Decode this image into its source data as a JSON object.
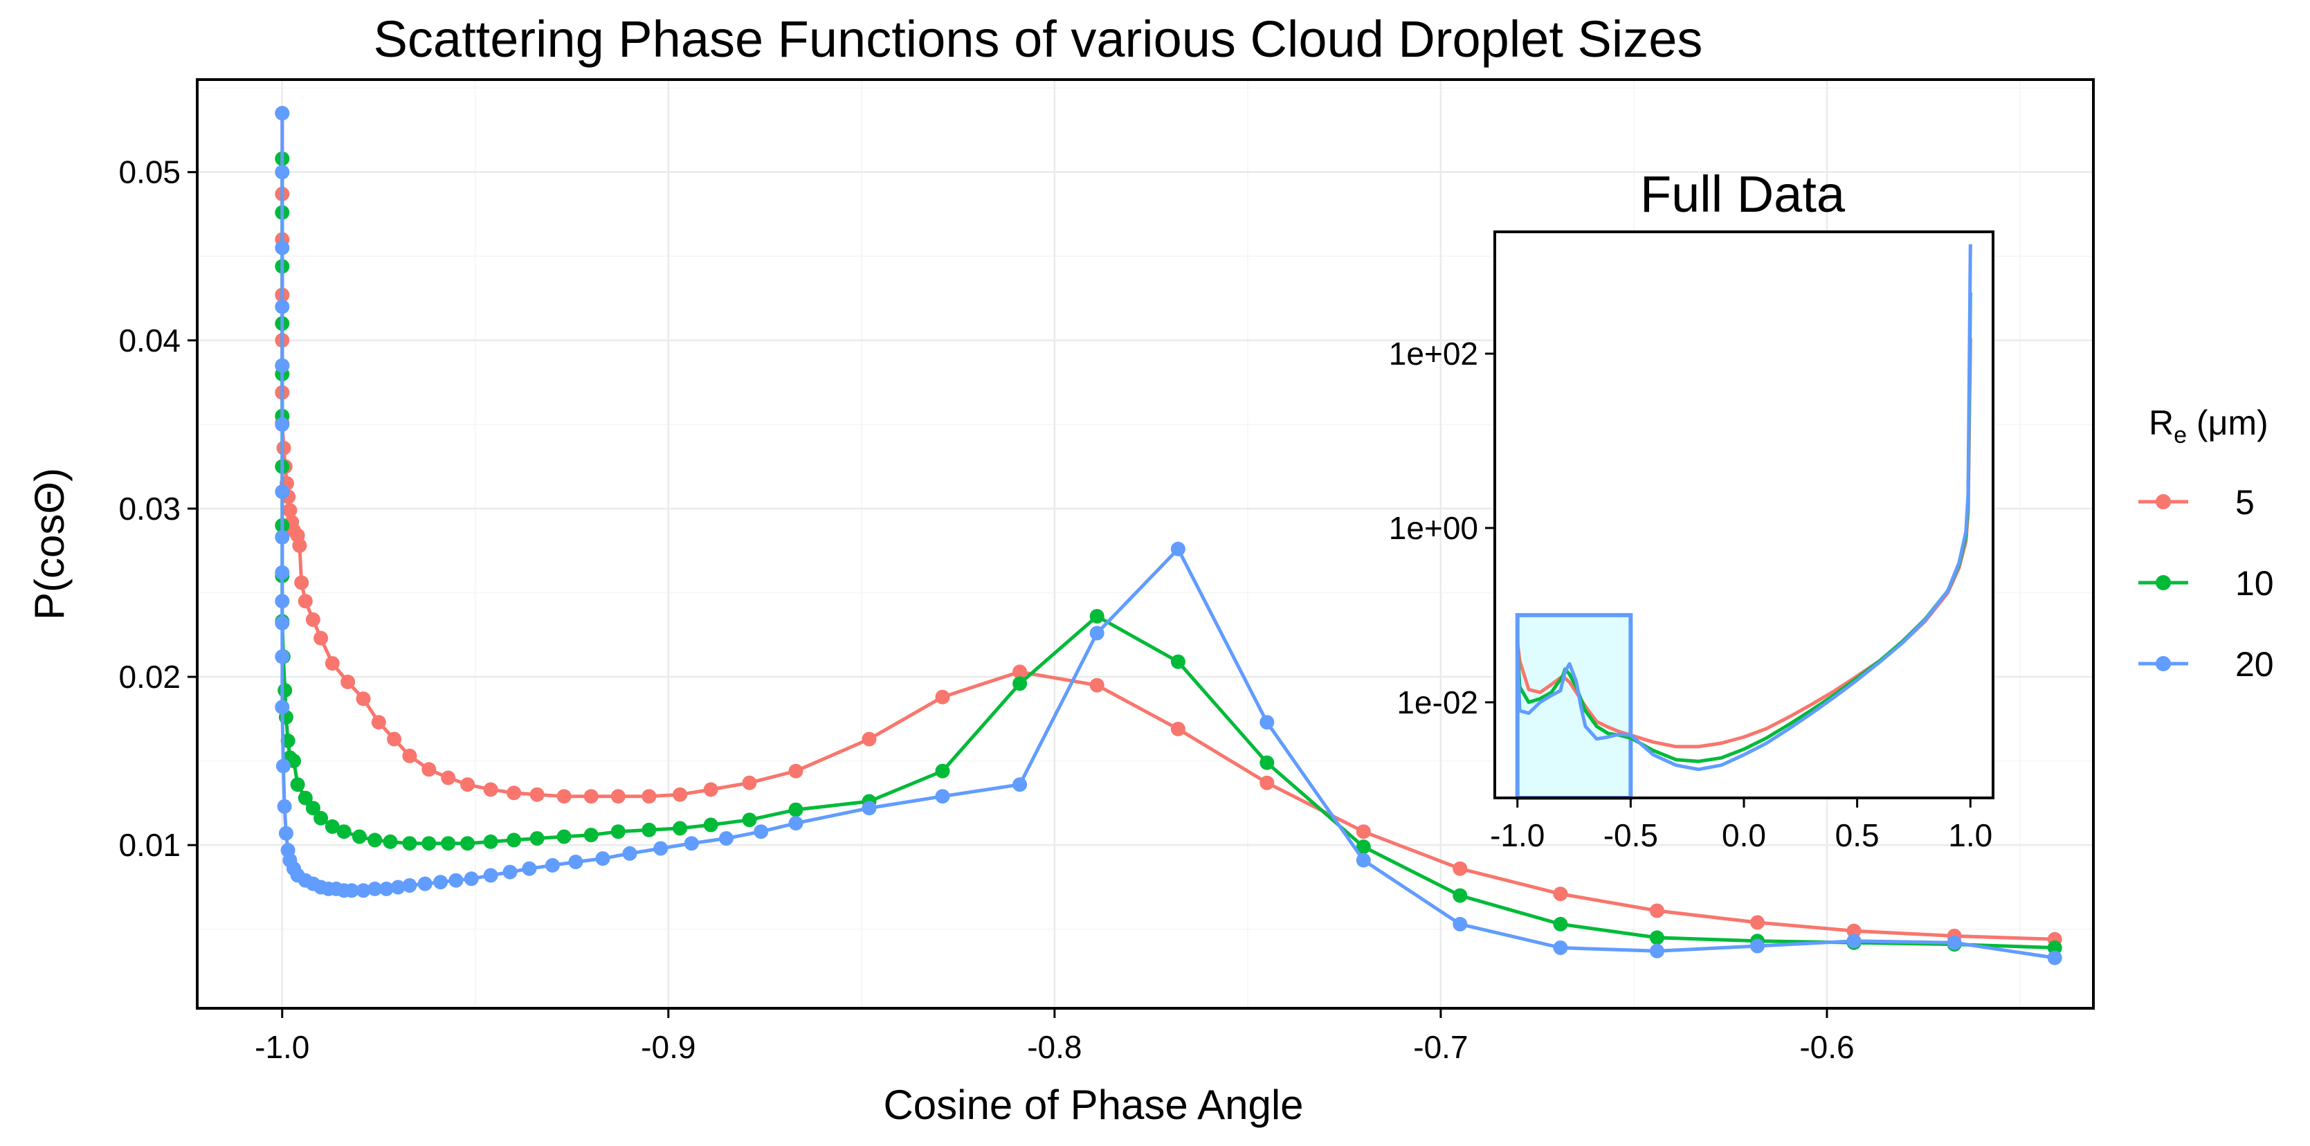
{
  "chart_data": [
    {
      "type": "line",
      "title": "Scattering Phase Functions of various Cloud Droplet Sizes",
      "xlabel": "Cosine of Phase Angle",
      "ylabel": "P(cosΘ)",
      "xlim": [
        -1.022,
        -0.531
      ],
      "ylim": [
        0.0003,
        0.0555
      ],
      "xticks": [
        -1.0,
        -0.9,
        -0.8,
        -0.7,
        -0.6
      ],
      "xtick_labels": [
        "-1.0",
        "-0.9",
        "-0.8",
        "-0.7",
        "-0.6"
      ],
      "yticks": [
        0.01,
        0.02,
        0.03,
        0.04,
        0.05
      ],
      "ytick_labels": [
        "0.01",
        "0.02",
        "0.03",
        "0.04",
        "0.05"
      ],
      "grid": true,
      "legend": {
        "title": "Re (μm)",
        "title_main": "R",
        "title_sub": "e",
        "title_rest": " (μm)",
        "position": "right"
      },
      "series": [
        {
          "name": "5",
          "color": "#F8766D",
          "x": [
            -1.0,
            -1.0,
            -1.0,
            -1.0,
            -1.0,
            -1.0,
            -1.0,
            -1.0,
            -0.9996,
            -0.9992,
            -0.9988,
            -0.9984,
            -0.998,
            -0.9975,
            -0.997,
            -0.996,
            -0.9955,
            -0.995,
            -0.994,
            -0.992,
            -0.99,
            -0.987,
            -0.983,
            -0.979,
            -0.975,
            -0.971,
            -0.967,
            -0.962,
            -0.957,
            -0.952,
            -0.946,
            -0.94,
            -0.934,
            -0.927,
            -0.92,
            -0.913,
            -0.905,
            -0.897,
            -0.889,
            -0.879,
            -0.867,
            -0.848,
            -0.829,
            -0.809,
            -0.789,
            -0.768,
            -0.745,
            -0.72,
            -0.695,
            -0.669,
            -0.644,
            -0.618,
            -0.593,
            -0.567,
            -0.541
          ],
          "values": [
            0.0535,
            0.0487,
            0.046,
            0.0427,
            0.04,
            0.0385,
            0.0369,
            0.0351,
            0.0336,
            0.0325,
            0.0315,
            0.0307,
            0.0299,
            0.0292,
            0.0287,
            0.0284,
            0.0278,
            0.0256,
            0.0245,
            0.0234,
            0.0223,
            0.0208,
            0.0197,
            0.0187,
            0.0173,
            0.0163,
            0.0153,
            0.0145,
            0.014,
            0.0136,
            0.0133,
            0.0131,
            0.013,
            0.0129,
            0.0129,
            0.0129,
            0.0129,
            0.013,
            0.0133,
            0.0137,
            0.0144,
            0.0163,
            0.0188,
            0.0203,
            0.0195,
            0.0169,
            0.0137,
            0.0108,
            0.0086,
            0.0071,
            0.0061,
            0.0054,
            0.0049,
            0.0046,
            0.0044
          ]
        },
        {
          "name": "10",
          "color": "#00BA38",
          "x": [
            -1.0,
            -1.0,
            -1.0,
            -1.0,
            -1.0,
            -1.0,
            -1.0,
            -1.0,
            -1.0,
            -1.0,
            -0.9997,
            -0.9993,
            -0.999,
            -0.9985,
            -0.998,
            -0.997,
            -0.996,
            -0.994,
            -0.992,
            -0.99,
            -0.987,
            -0.984,
            -0.98,
            -0.976,
            -0.972,
            -0.967,
            -0.962,
            -0.957,
            -0.952,
            -0.946,
            -0.94,
            -0.934,
            -0.927,
            -0.92,
            -0.913,
            -0.905,
            -0.897,
            -0.889,
            -0.879,
            -0.867,
            -0.848,
            -0.829,
            -0.809,
            -0.789,
            -0.768,
            -0.745,
            -0.72,
            -0.695,
            -0.669,
            -0.644,
            -0.618,
            -0.593,
            -0.567,
            -0.541
          ],
          "values": [
            0.0508,
            0.0476,
            0.0444,
            0.041,
            0.038,
            0.0355,
            0.0325,
            0.029,
            0.026,
            0.0233,
            0.0212,
            0.0192,
            0.0176,
            0.0162,
            0.0152,
            0.015,
            0.0136,
            0.0128,
            0.0122,
            0.0116,
            0.0111,
            0.0108,
            0.0105,
            0.0103,
            0.0102,
            0.0101,
            0.0101,
            0.0101,
            0.0101,
            0.0102,
            0.0103,
            0.0104,
            0.0105,
            0.0106,
            0.0108,
            0.0109,
            0.011,
            0.0112,
            0.0115,
            0.0121,
            0.0126,
            0.0144,
            0.0196,
            0.0236,
            0.0209,
            0.0149,
            0.0099,
            0.007,
            0.0053,
            0.0045,
            0.0043,
            0.0042,
            0.0041,
            0.0039
          ]
        },
        {
          "name": "20",
          "color": "#619CFF",
          "x": [
            -1.0,
            -1.0,
            -1.0,
            -1.0,
            -1.0,
            -1.0,
            -1.0,
            -1.0,
            -1.0,
            -1.0,
            -1.0,
            -1.0,
            -1.0,
            -0.9997,
            -0.9994,
            -0.999,
            -0.9985,
            -0.998,
            -0.997,
            -0.996,
            -0.994,
            -0.992,
            -0.99,
            -0.988,
            -0.986,
            -0.984,
            -0.982,
            -0.979,
            -0.976,
            -0.973,
            -0.97,
            -0.967,
            -0.963,
            -0.959,
            -0.955,
            -0.951,
            -0.946,
            -0.941,
            -0.936,
            -0.93,
            -0.924,
            -0.917,
            -0.91,
            -0.902,
            -0.894,
            -0.885,
            -0.876,
            -0.867,
            -0.848,
            -0.829,
            -0.809,
            -0.789,
            -0.768,
            -0.745,
            -0.72,
            -0.695,
            -0.669,
            -0.644,
            -0.618,
            -0.593,
            -0.567,
            -0.541
          ],
          "values": [
            0.0535,
            0.05,
            0.0455,
            0.042,
            0.0385,
            0.035,
            0.031,
            0.0283,
            0.0262,
            0.0245,
            0.0232,
            0.0212,
            0.0182,
            0.0147,
            0.0123,
            0.0107,
            0.0097,
            0.0091,
            0.0086,
            0.0082,
            0.0079,
            0.0077,
            0.0075,
            0.0074,
            0.0074,
            0.0073,
            0.0073,
            0.0073,
            0.0074,
            0.0074,
            0.0075,
            0.0076,
            0.0077,
            0.0078,
            0.0079,
            0.008,
            0.0082,
            0.0084,
            0.0086,
            0.0088,
            0.009,
            0.0092,
            0.0095,
            0.0098,
            0.0101,
            0.0104,
            0.0108,
            0.0113,
            0.0122,
            0.0129,
            0.0136,
            0.0226,
            0.0276,
            0.0173,
            0.0091,
            0.0053,
            0.0039,
            0.0037,
            0.004,
            0.0043,
            0.0042,
            0.0033
          ]
        }
      ]
    },
    {
      "type": "line",
      "title": "Full Data",
      "xlabel": "",
      "ylabel": "",
      "y_scale": "log",
      "xlim": [
        -1.1,
        1.1
      ],
      "ylim": [
        0.0008,
        2500
      ],
      "xticks": [
        -1.0,
        -0.5,
        0.0,
        0.5,
        1.0
      ],
      "xtick_labels": [
        "-1.0",
        "-0.5",
        "0.0",
        "0.5",
        "1.0"
      ],
      "yticks": [
        0.01,
        1,
        100
      ],
      "ytick_labels": [
        "1e-02",
        "1e+00",
        "1e+02"
      ],
      "zoom_region": {
        "x": [
          -1.0,
          -0.5
        ],
        "y": [
          0.0008,
          0.1
        ]
      },
      "zoom_color": "#DFFDFF",
      "series": [
        {
          "name": "5",
          "color": "#F8766D",
          "x": [
            -1.0,
            -0.99,
            -0.95,
            -0.9,
            -0.85,
            -0.8,
            -0.77,
            -0.74,
            -0.7,
            -0.65,
            -0.6,
            -0.55,
            -0.5,
            -0.4,
            -0.3,
            -0.2,
            -0.1,
            0.0,
            0.1,
            0.2,
            0.3,
            0.4,
            0.5,
            0.6,
            0.7,
            0.8,
            0.9,
            0.95,
            0.98,
            0.99,
            1.0
          ],
          "values": [
            0.05,
            0.03,
            0.014,
            0.013,
            0.016,
            0.02,
            0.017,
            0.013,
            0.009,
            0.006,
            0.0052,
            0.0046,
            0.0042,
            0.0035,
            0.0031,
            0.0031,
            0.0034,
            0.004,
            0.005,
            0.0068,
            0.0095,
            0.0135,
            0.02,
            0.03,
            0.048,
            0.085,
            0.18,
            0.35,
            0.7,
            1.5,
            150
          ]
        },
        {
          "name": "10",
          "color": "#00BA38",
          "x": [
            -1.0,
            -0.99,
            -0.95,
            -0.9,
            -0.85,
            -0.8,
            -0.79,
            -0.77,
            -0.74,
            -0.7,
            -0.65,
            -0.6,
            -0.55,
            -0.5,
            -0.4,
            -0.3,
            -0.2,
            -0.1,
            0.0,
            0.1,
            0.2,
            0.3,
            0.4,
            0.5,
            0.6,
            0.7,
            0.8,
            0.9,
            0.95,
            0.98,
            0.99,
            1.0
          ],
          "values": [
            0.05,
            0.015,
            0.01,
            0.011,
            0.013,
            0.02,
            0.024,
            0.021,
            0.015,
            0.008,
            0.0053,
            0.0044,
            0.0042,
            0.0039,
            0.0028,
            0.0022,
            0.0021,
            0.0023,
            0.0029,
            0.0039,
            0.0056,
            0.0082,
            0.0122,
            0.019,
            0.03,
            0.05,
            0.09,
            0.19,
            0.38,
            0.8,
            2.0,
            500
          ]
        },
        {
          "name": "20",
          "color": "#619CFF",
          "x": [
            -1.0,
            -0.99,
            -0.95,
            -0.9,
            -0.85,
            -0.81,
            -0.79,
            -0.77,
            -0.74,
            -0.72,
            -0.7,
            -0.65,
            -0.6,
            -0.55,
            -0.5,
            -0.4,
            -0.3,
            -0.2,
            -0.1,
            0.0,
            0.1,
            0.2,
            0.3,
            0.4,
            0.5,
            0.6,
            0.7,
            0.8,
            0.9,
            0.95,
            0.98,
            0.99,
            1.0
          ],
          "values": [
            0.05,
            0.008,
            0.0075,
            0.01,
            0.012,
            0.0136,
            0.0226,
            0.0276,
            0.0173,
            0.009,
            0.0053,
            0.0038,
            0.004,
            0.0043,
            0.0042,
            0.0025,
            0.0019,
            0.0017,
            0.0019,
            0.0025,
            0.0034,
            0.005,
            0.0075,
            0.0115,
            0.018,
            0.029,
            0.048,
            0.088,
            0.19,
            0.4,
            0.9,
            2.5,
            1800
          ]
        }
      ]
    }
  ]
}
